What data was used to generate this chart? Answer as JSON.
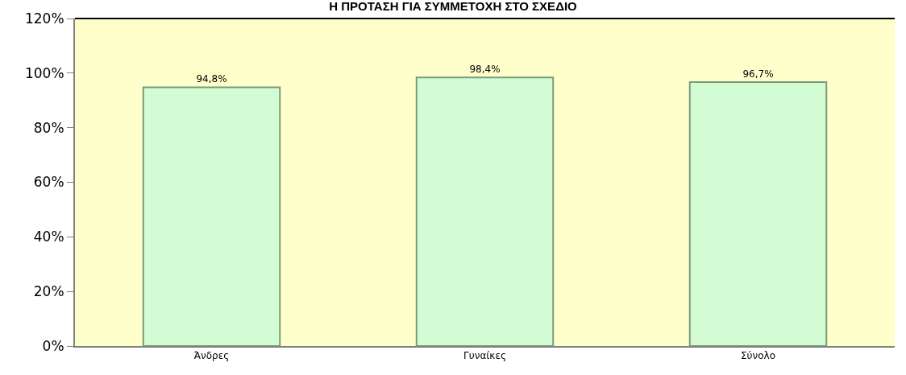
{
  "chart_data": {
    "type": "bar",
    "title": "Η ΠΡΟΤΑΣΗ ΓΙΑ ΣΥΜΜΕΤΟΧΗ ΣΤΟ ΣΧΕΔΙΟ",
    "categories": [
      "Άνδρες",
      "Γυναίκες",
      "Σύνολο"
    ],
    "values": [
      94.8,
      98.4,
      96.7
    ],
    "value_labels": [
      "94,8%",
      "98,4%",
      "96,7%"
    ],
    "color": "#d4fcd4",
    "ylim": [
      0,
      120
    ],
    "yticks": [
      {
        "value": 0,
        "label": "0%"
      },
      {
        "value": 20,
        "label": "20%"
      },
      {
        "value": 40,
        "label": "40%"
      },
      {
        "value": 60,
        "label": "60%"
      },
      {
        "value": 80,
        "label": "80%"
      },
      {
        "value": 100,
        "label": "100%"
      },
      {
        "value": 120,
        "label": "120%"
      }
    ]
  }
}
